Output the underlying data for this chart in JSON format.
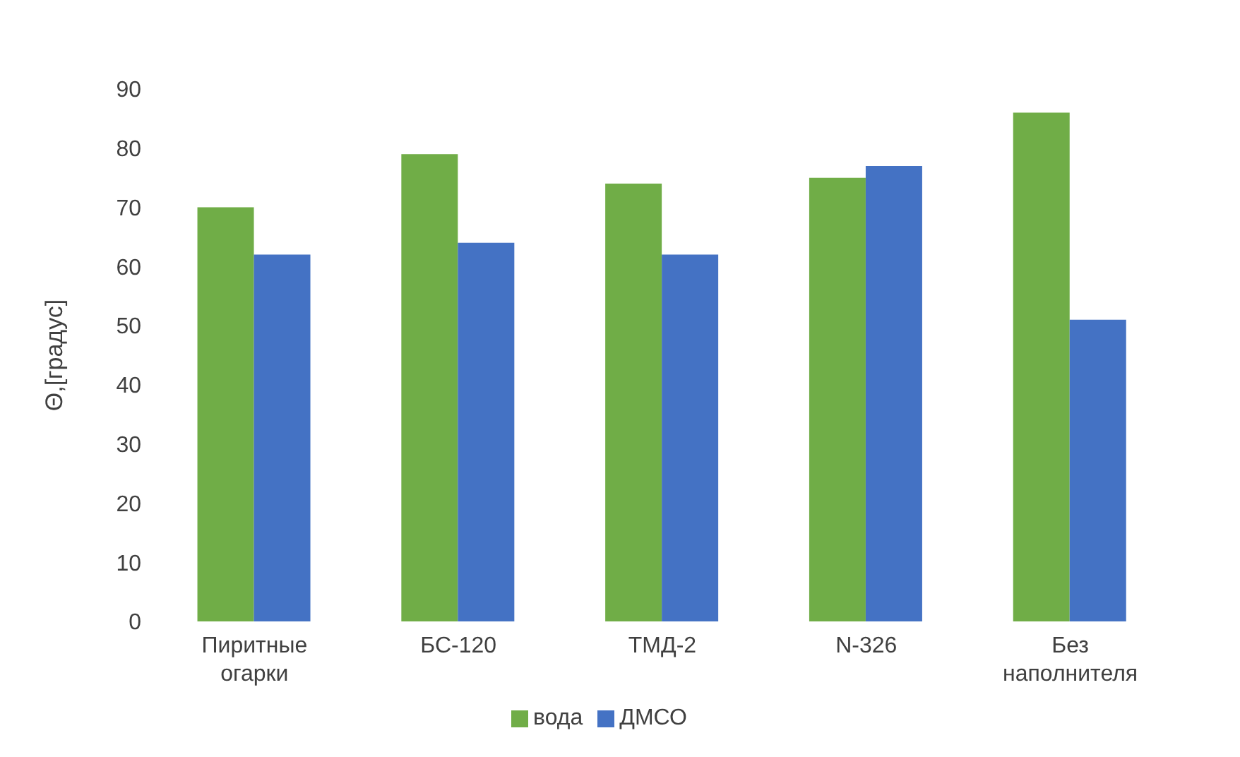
{
  "chart_data": {
    "type": "bar",
    "ylabel": "Θ,[градус]",
    "categories": [
      "Пиритные огарки",
      "БС-120",
      "ТМД-2",
      "N-326",
      "Без наполнителя"
    ],
    "series": [
      {
        "name": "вода",
        "color": "#70ad47",
        "values": [
          70,
          79,
          74,
          75,
          86
        ]
      },
      {
        "name": "ДМСО",
        "color": "#4472c4",
        "values": [
          62,
          64,
          62,
          77,
          51
        ]
      }
    ],
    "ylim": [
      0,
      90
    ],
    "yticks": [
      0,
      10,
      20,
      30,
      40,
      50,
      60,
      70,
      80,
      90
    ],
    "grid": false,
    "legend": "bottom"
  }
}
